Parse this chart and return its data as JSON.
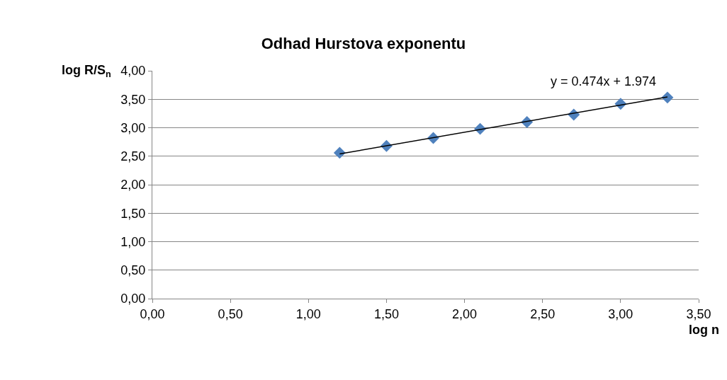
{
  "chart_data": {
    "type": "scatter",
    "title": "Odhad Hurstova exponentu",
    "xlabel": "log n",
    "ylabel": "log R/S$_{n}$",
    "series": [
      {
        "color": "#4f81bd",
        "x": [
          1.2,
          1.5,
          1.8,
          2.1,
          2.4,
          2.7,
          3.0,
          3.3
        ],
        "values": [
          2.56,
          2.68,
          2.82,
          2.98,
          3.1,
          3.23,
          3.42,
          3.53
        ]
      },
      {
        "type": "line",
        "marker": "none",
        "color": "#000000",
        "x": [
          1.2,
          3.3
        ],
        "values": [
          2.54,
          3.54
        ]
      }
    ],
    "annotations": [
      "y = 0.474x + 1.974"
    ],
    "marker": "diamond",
    "grid": "y",
    "xlim": [
      0,
      3.5
    ],
    "ylim": [
      0,
      4
    ],
    "xticks": [
      {
        "value": 0,
        "label": "0,00"
      },
      {
        "value": 0.5,
        "label": "0,50"
      },
      {
        "value": 1,
        "label": "1,00"
      },
      {
        "value": 1.5,
        "label": "1,50"
      },
      {
        "value": 2,
        "label": "2,00"
      },
      {
        "value": 2.5,
        "label": "2,50"
      },
      {
        "value": 3,
        "label": "3,00"
      },
      {
        "value": 3.5,
        "label": "3,50"
      }
    ],
    "yticks": [
      {
        "value": 0,
        "label": "0,00"
      },
      {
        "value": 0.5,
        "label": "0,50"
      },
      {
        "value": 1,
        "label": "1,00"
      },
      {
        "value": 1.5,
        "label": "1,50"
      },
      {
        "value": 2,
        "label": "2,00"
      },
      {
        "value": 2.5,
        "label": "2,50"
      },
      {
        "value": 3,
        "label": "3,00"
      },
      {
        "value": 3.5,
        "label": "3,50"
      },
      {
        "value": 4,
        "label": "4,00"
      }
    ]
  }
}
